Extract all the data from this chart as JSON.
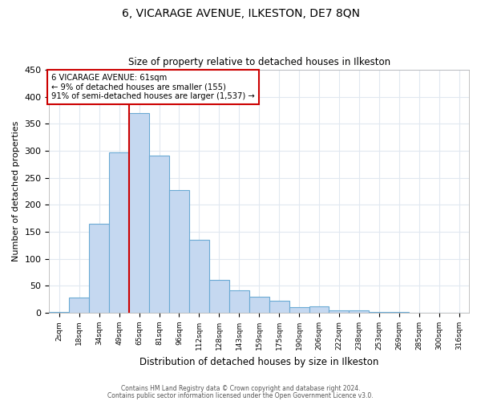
{
  "title1": "6, VICARAGE AVENUE, ILKESTON, DE7 8QN",
  "title2": "Size of property relative to detached houses in Ilkeston",
  "xlabel": "Distribution of detached houses by size in Ilkeston",
  "ylabel": "Number of detached properties",
  "bar_labels": [
    "2sqm",
    "18sqm",
    "34sqm",
    "49sqm",
    "65sqm",
    "81sqm",
    "96sqm",
    "112sqm",
    "128sqm",
    "143sqm",
    "159sqm",
    "175sqm",
    "190sqm",
    "206sqm",
    "222sqm",
    "238sqm",
    "253sqm",
    "269sqm",
    "285sqm",
    "300sqm",
    "316sqm"
  ],
  "bar_values": [
    1,
    28,
    165,
    297,
    370,
    291,
    227,
    135,
    61,
    42,
    30,
    23,
    11,
    12,
    5,
    4,
    2,
    1,
    0,
    0,
    0
  ],
  "bar_color": "#c5d8f0",
  "bar_edge_color": "#6aaad4",
  "vline_color": "#cc0000",
  "annotation_title": "6 VICARAGE AVENUE: 61sqm",
  "annotation_line1": "← 9% of detached houses are smaller (155)",
  "annotation_line2": "91% of semi-detached houses are larger (1,537) →",
  "annotation_box_color": "#ffffff",
  "annotation_box_edge": "#cc0000",
  "ylim": [
    0,
    450
  ],
  "yticks": [
    0,
    50,
    100,
    150,
    200,
    250,
    300,
    350,
    400,
    450
  ],
  "footer1": "Contains HM Land Registry data © Crown copyright and database right 2024.",
  "footer2": "Contains public sector information licensed under the Open Government Licence v3.0.",
  "bg_color": "#ffffff",
  "plot_bg_color": "#ffffff",
  "grid_color": "#e0e8f0"
}
